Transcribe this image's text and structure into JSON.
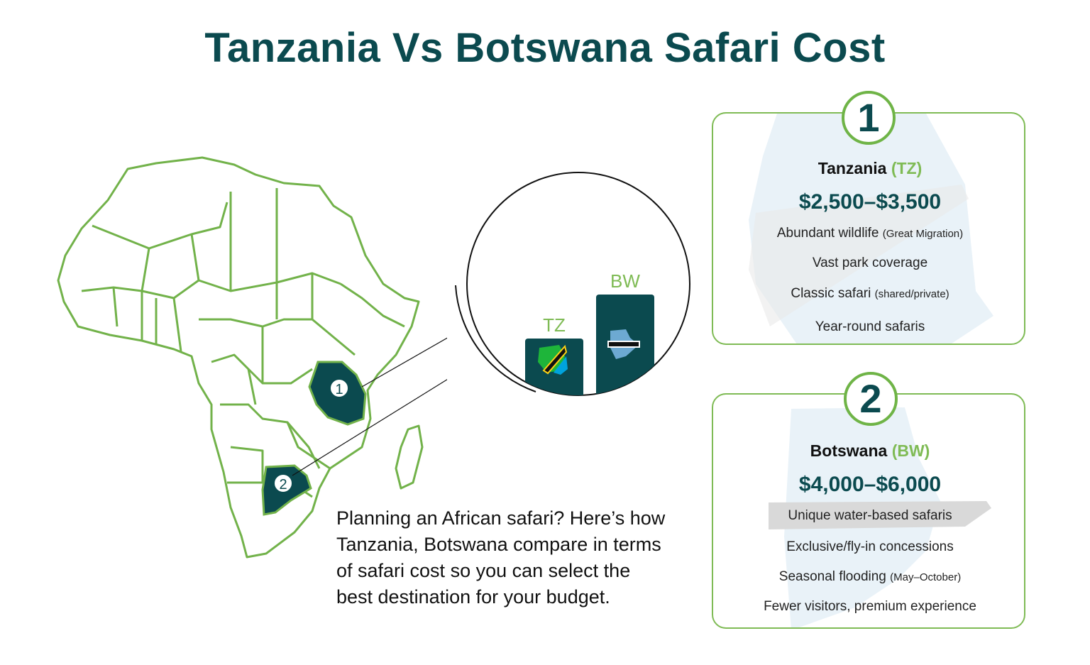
{
  "title": "Tanzania Vs Botswana Safari Cost",
  "intro": "Planning an African safari? Here’s how\nTanzania, Botswana compare in terms\n of safari cost so you can select the\nbest destination for your budget.",
  "map": {
    "markers": [
      {
        "label": "1",
        "country": "Tanzania"
      },
      {
        "label": "2",
        "country": "Botswana"
      }
    ]
  },
  "zoom": {
    "bars": [
      {
        "label": "TZ",
        "value": 3000
      },
      {
        "label": "BW",
        "value": 5000
      }
    ]
  },
  "cards": [
    {
      "number": "1",
      "name": "Tanzania",
      "abbr": "(TZ)",
      "price": "$2,500–$3,500",
      "features": [
        {
          "text": "Abundant wildlife",
          "note": "(Great Migration)"
        },
        {
          "text": "Vast park coverage",
          "note": ""
        },
        {
          "text": "Classic safari",
          "note": "(shared/private)"
        },
        {
          "text": "Year-round safaris",
          "note": ""
        }
      ]
    },
    {
      "number": "2",
      "name": "Botswana",
      "abbr": "(BW)",
      "price": "$4,000–$6,000",
      "features": [
        {
          "text": "Unique water-based safaris",
          "note": ""
        },
        {
          "text": "Exclusive/fly-in concessions",
          "note": ""
        },
        {
          "text": "Seasonal flooding",
          "note": "(May–October)"
        },
        {
          "text": "Fewer visitors, premium experience",
          "note": ""
        }
      ]
    }
  ],
  "colors": {
    "primary": "#0b4a4f",
    "accent": "#7fbb55",
    "map_outline": "#72b24a"
  }
}
